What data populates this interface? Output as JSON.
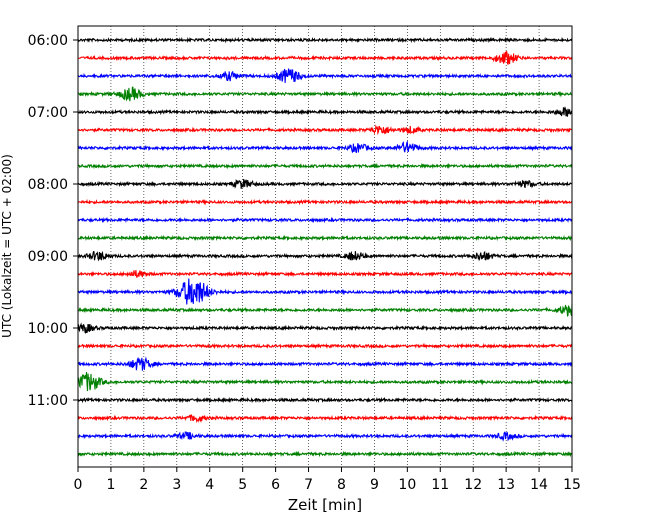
{
  "chart_data": {
    "type": "line",
    "title": "",
    "xlabel": "Zeit  [min]",
    "ylabel": "UTC (Lokalzeit = UTC + 02:00)",
    "xlim": [
      0,
      15
    ],
    "xticks": [
      "0",
      "1",
      "2",
      "3",
      "4",
      "5",
      "6",
      "7",
      "8",
      "9",
      "10",
      "11",
      "12",
      "13",
      "14",
      "15"
    ],
    "y_start": "06:00",
    "y_end": "11:45",
    "trace_interval_min": 15,
    "ytick_labels": [
      "06:00",
      "07:00",
      "08:00",
      "09:00",
      "10:00",
      "11:00"
    ],
    "grid": "vertical dotted lines at each minute",
    "legend": "none",
    "colors": [
      "#000000",
      "#ff0000",
      "#0000ff",
      "#008000"
    ],
    "traces": [
      {
        "time": "06:00",
        "color": "#000000",
        "events": []
      },
      {
        "time": "06:15",
        "color": "#ff0000",
        "events": [
          {
            "minute": 13.0,
            "amp": 6
          }
        ]
      },
      {
        "time": "06:30",
        "color": "#0000ff",
        "events": [
          {
            "minute": 4.6,
            "amp": 4
          },
          {
            "minute": 6.4,
            "amp": 7
          }
        ]
      },
      {
        "time": "06:45",
        "color": "#008000",
        "events": [
          {
            "minute": 1.6,
            "amp": 6
          }
        ]
      },
      {
        "time": "07:00",
        "color": "#000000",
        "events": [
          {
            "minute": 14.8,
            "amp": 4
          }
        ]
      },
      {
        "time": "07:15",
        "color": "#ff0000",
        "events": [
          {
            "minute": 9.2,
            "amp": 4
          },
          {
            "minute": 10.1,
            "amp": 3
          }
        ]
      },
      {
        "time": "07:30",
        "color": "#0000ff",
        "events": [
          {
            "minute": 10.0,
            "amp": 5
          },
          {
            "minute": 8.5,
            "amp": 4
          }
        ]
      },
      {
        "time": "07:45",
        "color": "#008000",
        "events": []
      },
      {
        "time": "08:00",
        "color": "#000000",
        "events": [
          {
            "minute": 5.0,
            "amp": 4
          },
          {
            "minute": 13.6,
            "amp": 3
          }
        ]
      },
      {
        "time": "08:15",
        "color": "#ff0000",
        "events": []
      },
      {
        "time": "08:30",
        "color": "#0000ff",
        "events": []
      },
      {
        "time": "08:45",
        "color": "#008000",
        "events": []
      },
      {
        "time": "09:00",
        "color": "#000000",
        "events": [
          {
            "minute": 0.6,
            "amp": 4
          },
          {
            "minute": 8.4,
            "amp": 4
          },
          {
            "minute": 12.3,
            "amp": 4
          }
        ]
      },
      {
        "time": "09:15",
        "color": "#ff0000",
        "events": [
          {
            "minute": 1.8,
            "amp": 3
          }
        ]
      },
      {
        "time": "09:30",
        "color": "#0000ff",
        "events": [
          {
            "minute": 3.5,
            "amp": 14
          }
        ]
      },
      {
        "time": "09:45",
        "color": "#008000",
        "events": [
          {
            "minute": 14.9,
            "amp": 5
          }
        ]
      },
      {
        "time": "10:00",
        "color": "#000000",
        "events": [
          {
            "minute": 0.2,
            "amp": 4
          }
        ]
      },
      {
        "time": "10:15",
        "color": "#ff0000",
        "events": []
      },
      {
        "time": "10:30",
        "color": "#0000ff",
        "events": [
          {
            "minute": 1.9,
            "amp": 6
          }
        ]
      },
      {
        "time": "10:45",
        "color": "#008000",
        "events": [
          {
            "minute": 0.3,
            "amp": 9
          }
        ]
      },
      {
        "time": "11:00",
        "color": "#000000",
        "events": []
      },
      {
        "time": "11:15",
        "color": "#ff0000",
        "events": [
          {
            "minute": 3.6,
            "amp": 3
          }
        ]
      },
      {
        "time": "11:30",
        "color": "#0000ff",
        "events": [
          {
            "minute": 3.3,
            "amp": 3
          },
          {
            "minute": 13.0,
            "amp": 3
          }
        ]
      },
      {
        "time": "11:45",
        "color": "#008000",
        "events": []
      }
    ]
  }
}
